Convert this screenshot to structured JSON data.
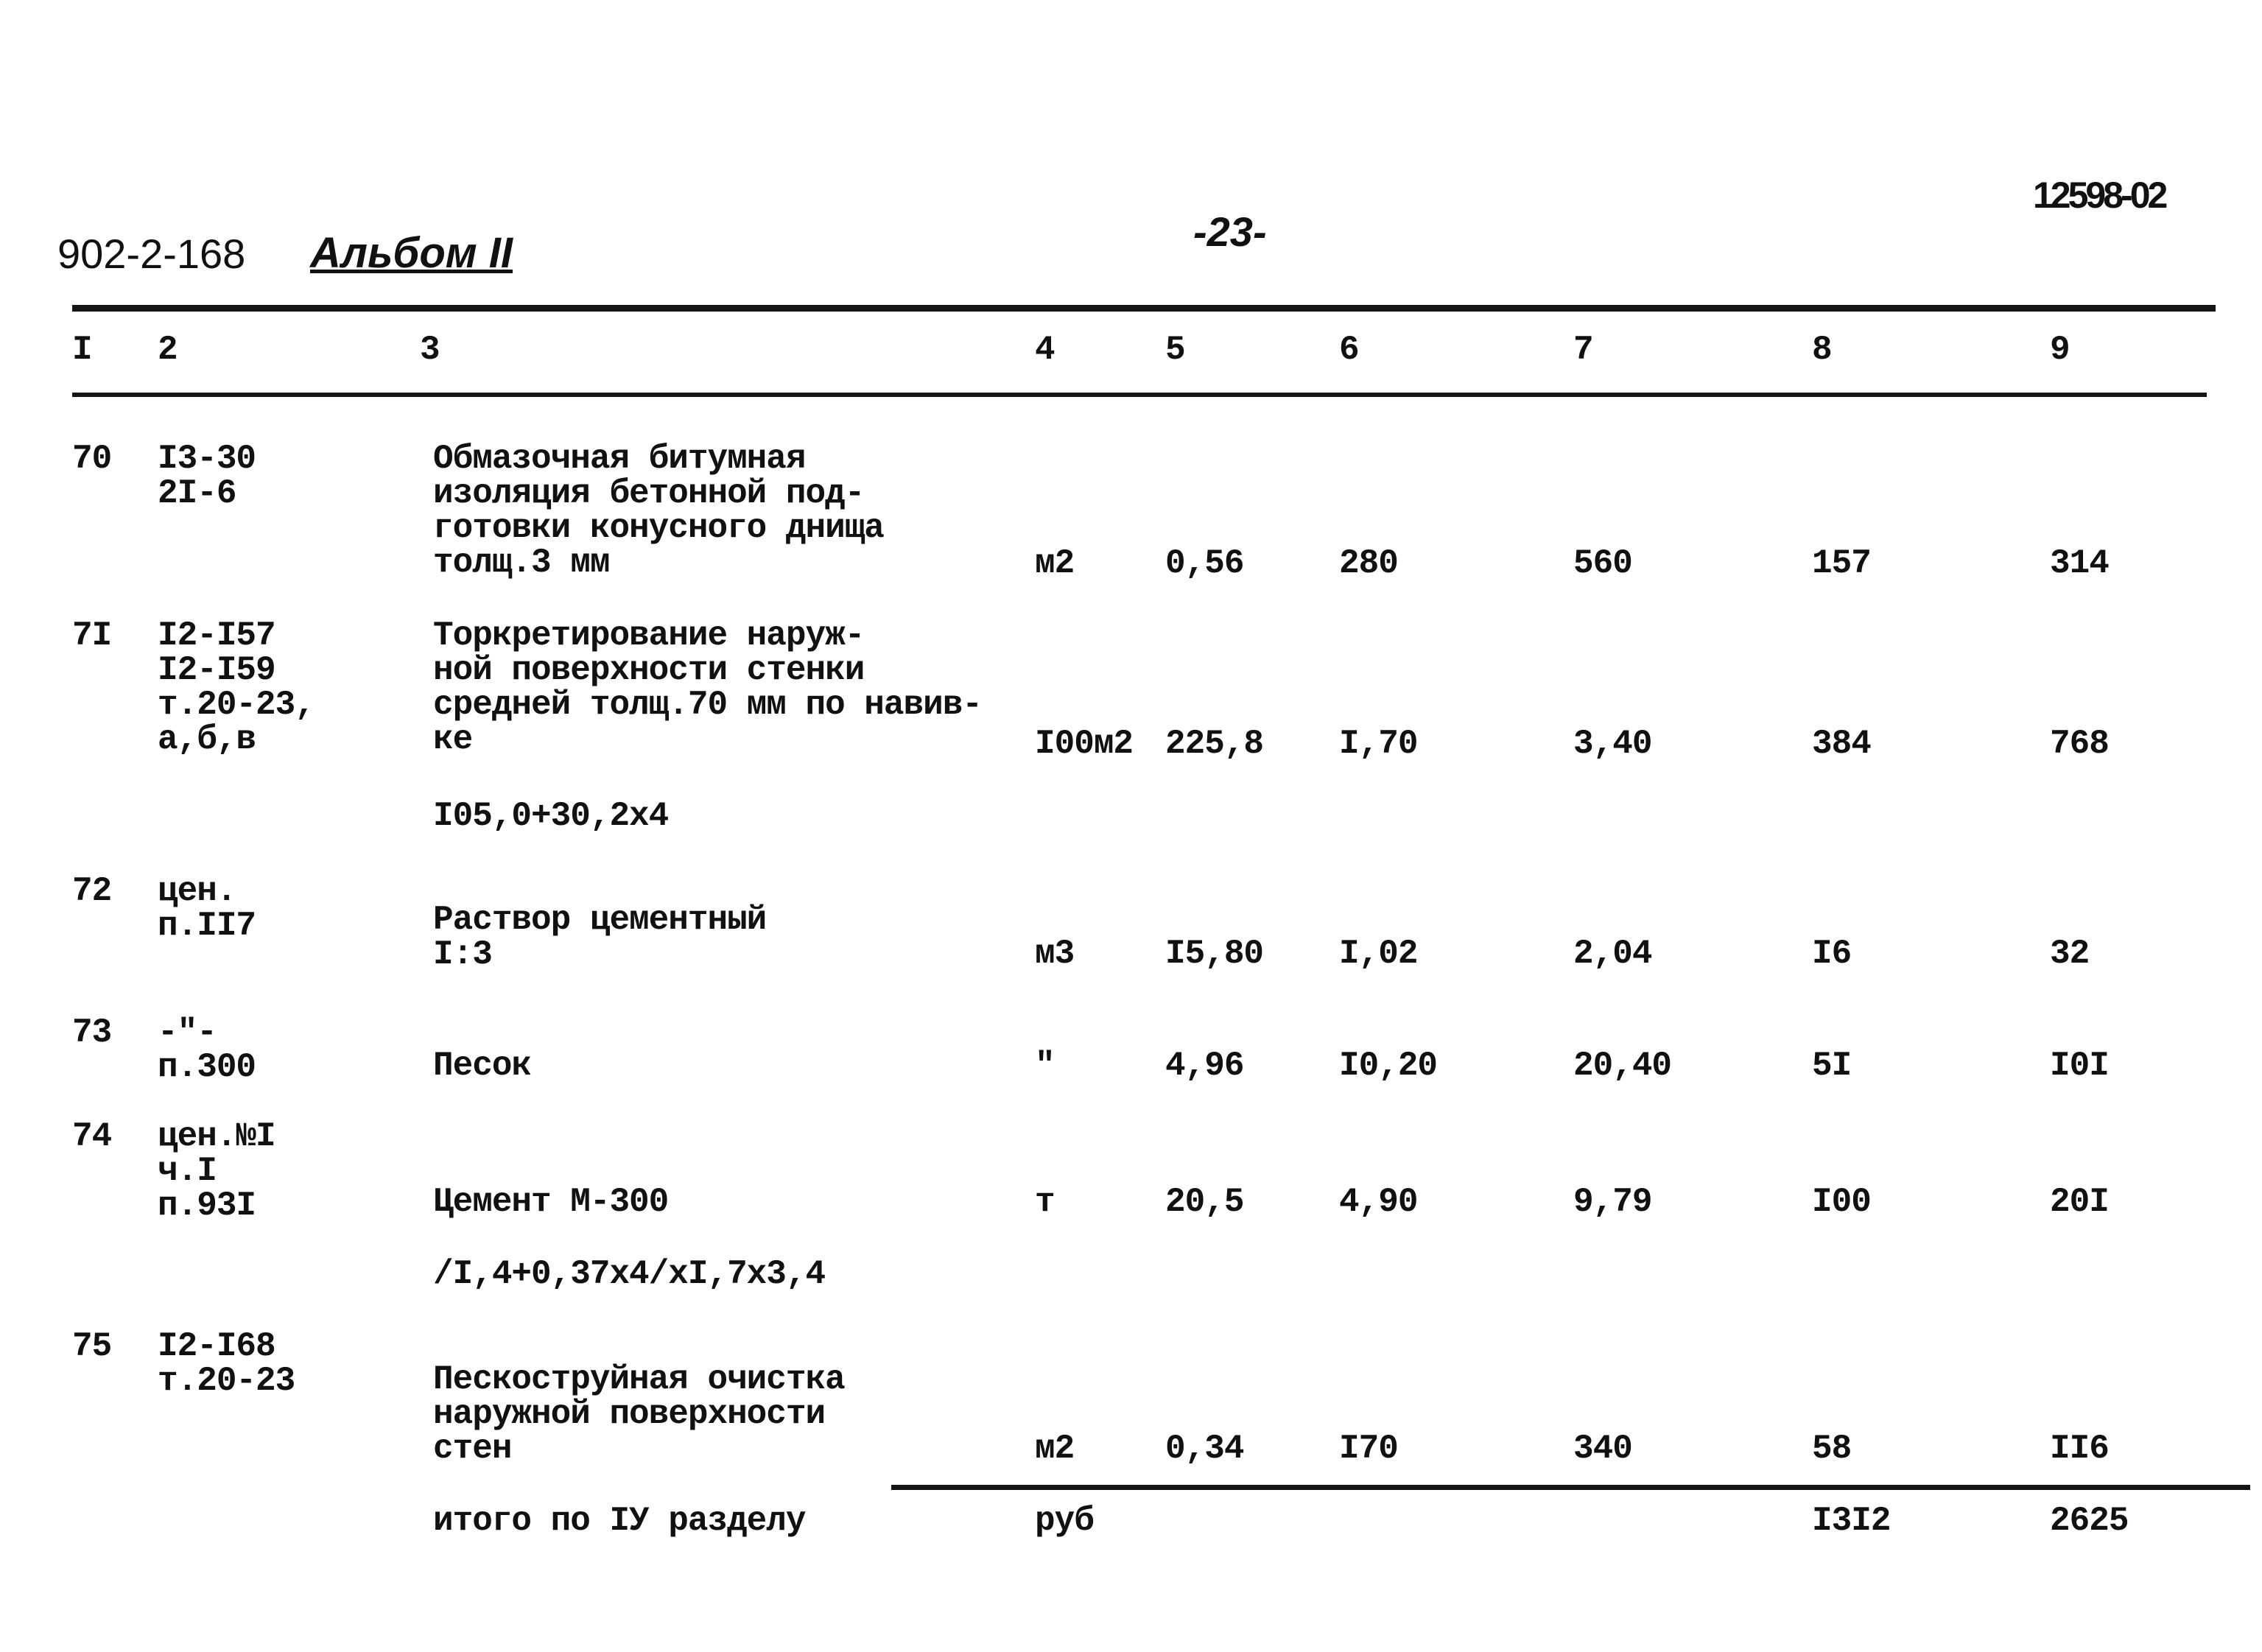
{
  "header": {
    "doc_code": "902-2-168",
    "album": "Альбом II",
    "page_number": "-23-",
    "stamp": "12598-02"
  },
  "column_numbers": [
    "I",
    "2",
    "3",
    "4",
    "5",
    "6",
    "7",
    "8",
    "9"
  ],
  "rows": [
    {
      "num": "70",
      "code": [
        "I3-30",
        "2I-6"
      ],
      "desc": [
        "Обмазочная битумная",
        "изоляция бетонной под-",
        "готовки конусного днища",
        "толщ.3 мм"
      ],
      "unit": "м2",
      "c5": "0,56",
      "c6": "280",
      "c7": "560",
      "c8": "157",
      "c9": "314",
      "formula": ""
    },
    {
      "num": "7I",
      "code": [
        "I2-I57",
        "I2-I59",
        "т.20-23,",
        "а,б,в"
      ],
      "desc": [
        "Торкретирование наруж-",
        "ной поверхности стенки",
        "средней толщ.70 мм по навив-",
        "ке"
      ],
      "unit": "I00м2",
      "c5": "225,8",
      "c6": "I,70",
      "c7": "3,40",
      "c8": "384",
      "c9": "768",
      "formula": "I05,0+30,2х4"
    },
    {
      "num": "72",
      "code": [
        "цен.",
        "п.II7"
      ],
      "desc": [
        "Раствор цементный",
        "I:3"
      ],
      "unit": "м3",
      "c5": "I5,80",
      "c6": "I,02",
      "c7": "2,04",
      "c8": "I6",
      "c9": "32",
      "formula": ""
    },
    {
      "num": "73",
      "code": [
        "-\"-",
        "п.300"
      ],
      "desc": [
        "Песок"
      ],
      "unit": "\"",
      "c5": "4,96",
      "c6": "I0,20",
      "c7": "20,40",
      "c8": "5I",
      "c9": "I0I",
      "formula": ""
    },
    {
      "num": "74",
      "code": [
        "цен.№I",
        "ч.I",
        "п.93I"
      ],
      "desc": [
        "Цемент М-300"
      ],
      "unit": "т",
      "c5": "20,5",
      "c6": "4,90",
      "c7": "9,79",
      "c8": "I00",
      "c9": "20I",
      "formula": "/I,4+0,37х4/хI,7х3,4"
    },
    {
      "num": "75",
      "code": [
        "I2-I68",
        "т.20-23"
      ],
      "desc": [
        "Пескоструйная очистка",
        "наружной поверхности",
        "стен"
      ],
      "unit": "м2",
      "c5": "0,34",
      "c6": "I70",
      "c7": "340",
      "c8": "58",
      "c9": "II6",
      "formula": ""
    }
  ],
  "total": {
    "label": "итого по IУ разделу",
    "unit": "руб",
    "c8": "I3I2",
    "c9": "2625"
  }
}
